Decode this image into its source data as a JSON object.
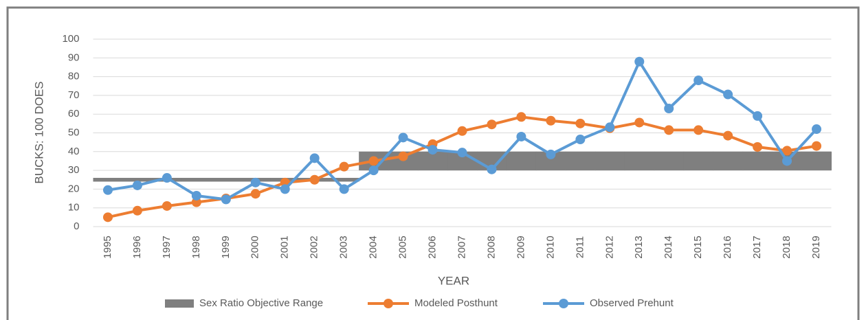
{
  "chart_data": {
    "type": "line",
    "categories": [
      "1995",
      "1996",
      "1997",
      "1998",
      "1999",
      "2000",
      "2001",
      "2002",
      "2003",
      "2004",
      "2005",
      "2006",
      "2007",
      "2008",
      "2009",
      "2010",
      "2011",
      "2012",
      "2013",
      "2014",
      "2015",
      "2016",
      "2017",
      "2018",
      "2019"
    ],
    "x_label": "YEAR",
    "y_label": "BUCKS: 100 DOES",
    "ylim": [
      0,
      100
    ],
    "yticks": [
      0,
      10,
      20,
      30,
      40,
      50,
      60,
      70,
      80,
      90,
      100
    ],
    "grid": true,
    "band": {
      "name": "Sex Ratio Objective Range",
      "color": "#7f7f7f",
      "low": [
        24,
        24,
        24,
        24,
        24,
        24,
        24,
        24,
        24,
        30,
        30,
        30,
        30,
        30,
        30,
        30,
        30,
        30,
        30,
        30,
        30,
        30,
        30,
        30,
        30
      ],
      "high": [
        26,
        26,
        26,
        26,
        26,
        26,
        26,
        26,
        26,
        40,
        40,
        40,
        40,
        40,
        40,
        40,
        40,
        40,
        40,
        40,
        40,
        40,
        40,
        40,
        40
      ]
    },
    "series": [
      {
        "name": "Modeled Posthunt",
        "color": "#ed7d31",
        "values": [
          5,
          8.5,
          11,
          13,
          15,
          17.5,
          23.5,
          25,
          32,
          35,
          37.5,
          44,
          51,
          54.5,
          58.5,
          56.5,
          55,
          52.5,
          55.5,
          51.5,
          51.5,
          48.5,
          42.5,
          40.5,
          43
        ]
      },
      {
        "name": "Observed Prehunt",
        "color": "#5b9bd5",
        "values": [
          19.5,
          22,
          26,
          16.5,
          14.5,
          23.5,
          20,
          36.5,
          20,
          30,
          47.5,
          41,
          39.5,
          30.5,
          48,
          38.5,
          46.5,
          53,
          88,
          63,
          78,
          70.5,
          59,
          35,
          52
        ]
      }
    ],
    "legend": "bottom"
  }
}
